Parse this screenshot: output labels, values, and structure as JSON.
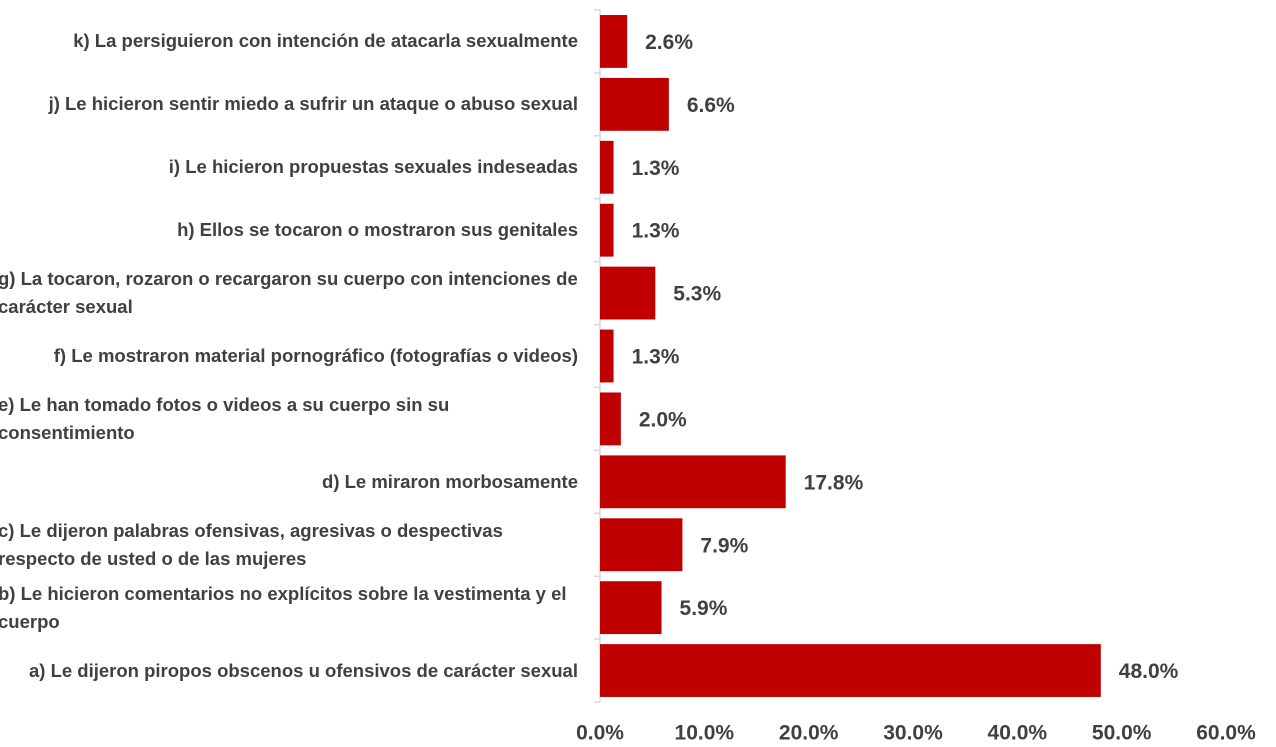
{
  "chart_data": {
    "type": "bar",
    "orientation": "horizontal",
    "categories": [
      "k) La persiguieron con intención de atacarla sexualmente",
      "j) Le hicieron sentir miedo a sufrir un ataque o abuso sexual",
      "i) Le hicieron propuestas sexuales indeseadas",
      "h) Ellos se tocaron o mostraron sus genitales",
      "g) La tocaron, rozaron o recargaron su cuerpo con intenciones de carácter sexual",
      "f) Le mostraron material pornográfico (fotografías o videos)",
      "e) Le han tomado fotos o videos a su cuerpo sin su consentimiento",
      "d) Le miraron morbosamente",
      "c) Le dijeron palabras ofensivas, agresivas o despectivas respecto de usted o de las mujeres",
      "b) Le hicieron comentarios no explícitos sobre la vestimenta y el cuerpo",
      "a) Le dijeron piropos obscenos u ofensivos de carácter sexual"
    ],
    "values": [
      2.6,
      6.6,
      1.3,
      1.3,
      5.3,
      1.3,
      2.0,
      17.8,
      7.9,
      5.9,
      48.0
    ],
    "value_labels": [
      "2.6%",
      "6.6%",
      "1.3%",
      "1.3%",
      "5.3%",
      "1.3%",
      "2.0%",
      "17.8%",
      "7.9%",
      "5.9%",
      "48.0%"
    ],
    "color": "#c00000",
    "xlim": [
      0,
      60
    ],
    "xticks": [
      {
        "value": 0,
        "label": "0.0%"
      },
      {
        "value": 10,
        "label": "10.0%"
      },
      {
        "value": 20,
        "label": "20.0%"
      },
      {
        "value": 30,
        "label": "30.0%"
      },
      {
        "value": 40,
        "label": "40.0%"
      },
      {
        "value": 50,
        "label": "50.0%"
      },
      {
        "value": 60,
        "label": "60.0%"
      }
    ],
    "grid": false
  }
}
